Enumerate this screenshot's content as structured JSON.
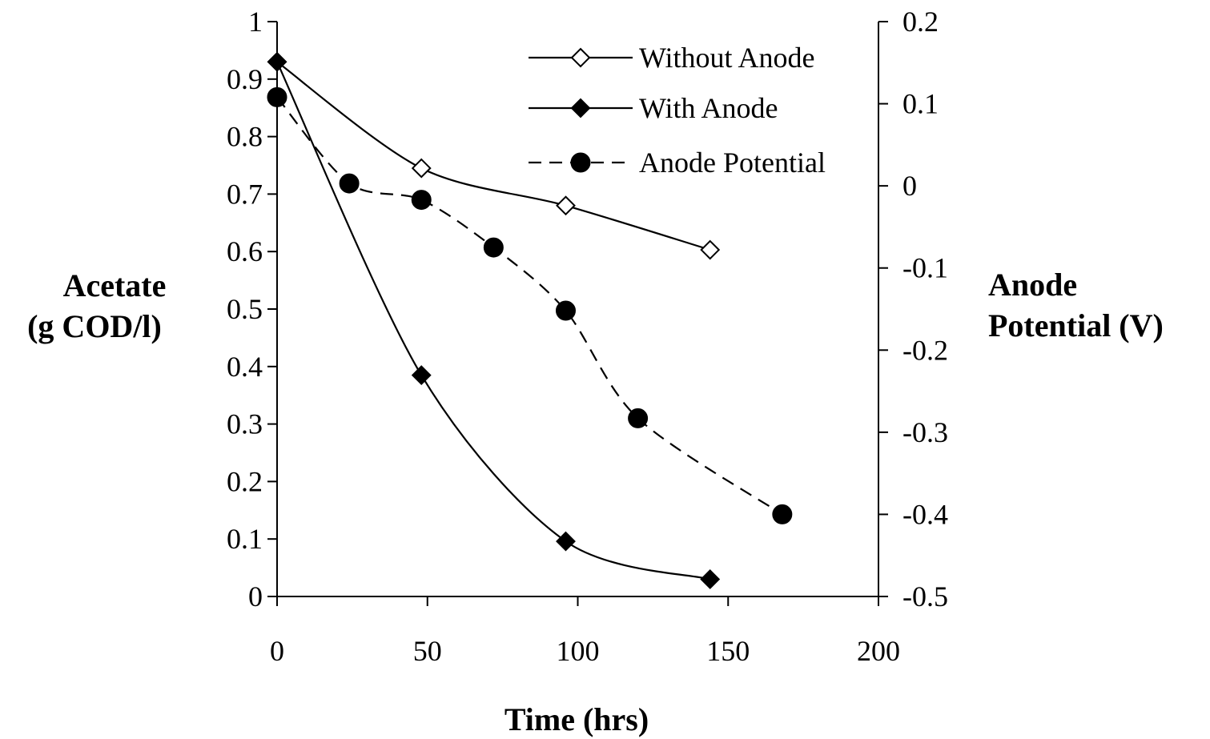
{
  "chart_data": {
    "type": "line",
    "title": "",
    "xlabel": "Time (hrs)",
    "ylabel_lines": [
      "Acetate",
      "(g COD/l)"
    ],
    "y2label_lines": [
      "Anode",
      "Potential (V)"
    ],
    "xlim": [
      0,
      200
    ],
    "ylim": [
      0,
      1
    ],
    "y2lim": [
      -0.5,
      0.2
    ],
    "x_ticks": [
      "0",
      "50",
      "100",
      "150",
      "200"
    ],
    "y_ticks": [
      "0",
      "0.1",
      "0.2",
      "0.3",
      "0.4",
      "0.5",
      "0.6",
      "0.7",
      "0.8",
      "0.9",
      "1"
    ],
    "y2_ticks": [
      "-0.5",
      "-0.4",
      "-0.3",
      "-0.2",
      "-0.1",
      "0",
      "0.1",
      "0.2"
    ],
    "grid": false,
    "legend_position": "top-right",
    "series": [
      {
        "name": "Without Anode",
        "axis": "left",
        "marker": "open-diamond",
        "line_style": "solid",
        "x": [
          0,
          48,
          96,
          144
        ],
        "y": [
          0.93,
          0.745,
          0.68,
          0.603
        ]
      },
      {
        "name": "With Anode",
        "axis": "left",
        "marker": "filled-diamond",
        "line_style": "solid",
        "x": [
          0,
          48,
          96,
          144
        ],
        "y": [
          0.93,
          0.385,
          0.096,
          0.03
        ]
      },
      {
        "name": "Anode Potential",
        "axis": "right",
        "marker": "filled-circle",
        "line_style": "dashed",
        "x": [
          0,
          24,
          48,
          72,
          96,
          120,
          168
        ],
        "y": [
          0.108,
          0.003,
          -0.017,
          -0.075,
          -0.152,
          -0.283,
          -0.4
        ]
      }
    ]
  }
}
